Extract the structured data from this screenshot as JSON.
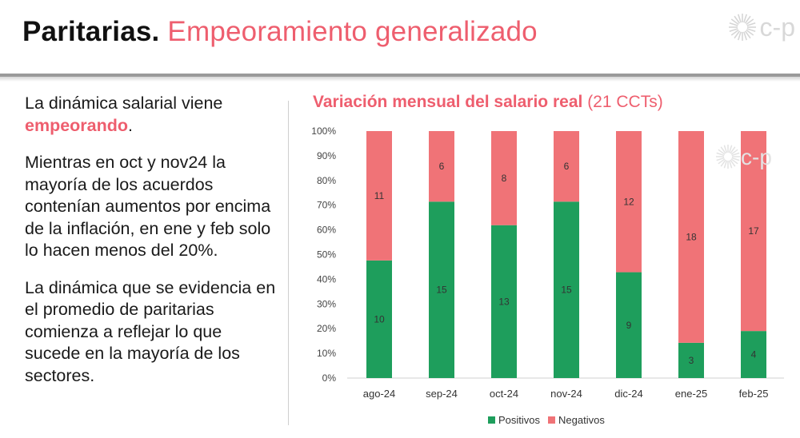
{
  "header": {
    "title_bold": "Paritarias.",
    "title_rest": "Empeoramiento generalizado",
    "logo_text": "c-p"
  },
  "left_text": {
    "p1_a": "La dinámica salarial viene ",
    "p1_b": "empeorando",
    "p1_c": ".",
    "p2": "Mientras en oct y nov24 la mayoría de los acuerdos contenían aumentos por encima de la inflación, en ene y feb solo lo hacen menos del 20%.",
    "p3": "La dinámica que se evidencia en el promedio de paritarias comienza a reflejar lo que sucede en la mayoría de los sectores."
  },
  "colors": {
    "accent": "#ee5e6e",
    "positivos": "#1e9e5c",
    "negativos": "#f07377"
  },
  "chart_data": {
    "type": "bar",
    "stacked": "percent",
    "title": "Variación mensual del salario real",
    "subtitle": "(21 CCTs)",
    "categories": [
      "ago-24",
      "sep-24",
      "oct-24",
      "nov-24",
      "dic-24",
      "ene-25",
      "feb-25"
    ],
    "series": [
      {
        "name": "Positivos",
        "values": [
          10,
          15,
          13,
          15,
          9,
          3,
          4
        ]
      },
      {
        "name": "Negativos",
        "values": [
          11,
          6,
          8,
          6,
          12,
          18,
          17
        ]
      }
    ],
    "y_ticks": [
      "0%",
      "10%",
      "20%",
      "30%",
      "40%",
      "50%",
      "60%",
      "70%",
      "80%",
      "90%",
      "100%"
    ],
    "ylim": [
      0,
      100
    ],
    "grid": false,
    "legend": "bottom"
  }
}
